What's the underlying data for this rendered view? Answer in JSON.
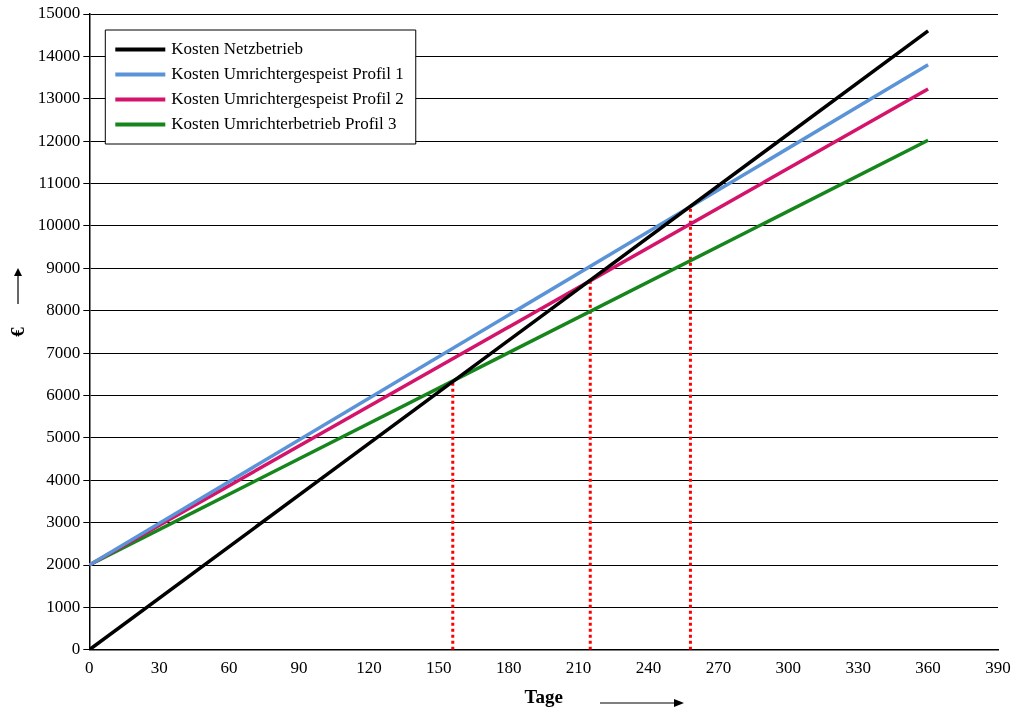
{
  "chart_data": {
    "type": "line",
    "xlabel": "Tage",
    "ylabel": "€",
    "xlim": [
      0,
      390
    ],
    "xticks": [
      0,
      30,
      60,
      90,
      120,
      150,
      180,
      210,
      240,
      270,
      300,
      330,
      360,
      390
    ],
    "ylim": [
      0,
      15000
    ],
    "yticks": [
      0,
      1000,
      2000,
      3000,
      4000,
      5000,
      6000,
      7000,
      8000,
      9000,
      10000,
      11000,
      12000,
      13000,
      14000,
      15000
    ],
    "grid": "y",
    "legend": "top left",
    "marker": "none",
    "line_style": "solid",
    "series": [
      {
        "name": "Kosten Netzbetrieb",
        "color": "#000000",
        "x": [
          0,
          360
        ],
        "values": [
          0,
          14600
        ]
      },
      {
        "name": "Kosten Umrichtergespeist Profil 1",
        "color": "#5b93d8",
        "x": [
          0,
          360
        ],
        "values": [
          2000,
          13800
        ]
      },
      {
        "name": "Kosten Umrichtergespeist Profil 2",
        "color": "#d4136a",
        "x": [
          0,
          360
        ],
        "values": [
          2000,
          13230
        ]
      },
      {
        "name": "Kosten Umrichterbetrieb Profil 3",
        "color": "#16861c",
        "x": [
          0,
          360
        ],
        "values": [
          2000,
          12020
        ]
      },
      {
        "color": "#ff0000",
        "line_style": "dotted",
        "x": [
          156,
          156
        ],
        "values": [
          0,
          6350
        ]
      },
      {
        "color": "#ff0000",
        "line_style": "dotted",
        "x": [
          215,
          215
        ],
        "values": [
          0,
          8750
        ]
      },
      {
        "color": "#ff0000",
        "line_style": "dotted",
        "x": [
          258,
          258
        ],
        "values": [
          0,
          10450
        ]
      }
    ]
  }
}
